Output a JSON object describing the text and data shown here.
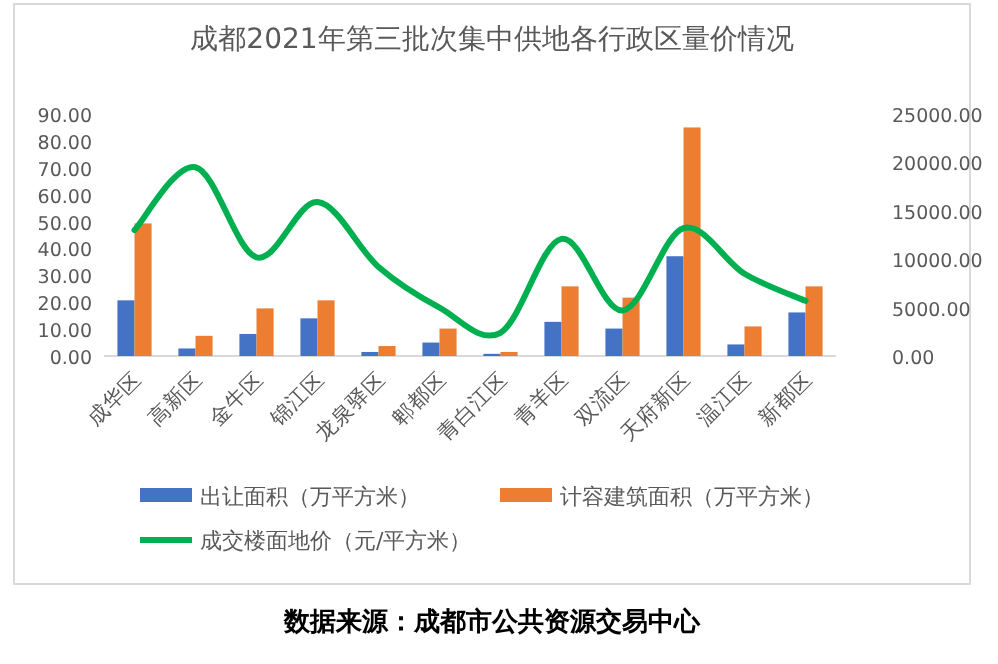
{
  "chart_data": {
    "type": "bar",
    "title": "成都2021年第三批次集中供地各行政区量价情况",
    "categories": [
      "成华区",
      "高新区",
      "金牛区",
      "锦江区",
      "龙泉驿区",
      "郫都区",
      "青白江区",
      "青羊区",
      "双流区",
      "天府新区",
      "温江区",
      "新都区"
    ],
    "series": [
      {
        "name": "出让面积（万平方米）",
        "color": "#4472c4",
        "values": [
          20.7,
          2.8,
          8.2,
          14,
          1.5,
          5,
          0.8,
          12.7,
          10.2,
          37.1,
          4.3,
          16.2
        ]
      },
      {
        "name": "计容建筑面积（万平方米）",
        "color": "#ed7d31",
        "values": [
          49.3,
          7.5,
          17.7,
          20.7,
          3.7,
          10.2,
          1.5,
          25.9,
          21.7,
          85,
          11,
          25.9
        ]
      },
      {
        "name": "成交楼面地价（元/平方米）",
        "type": "line",
        "axis": "y2",
        "color": "#00b050",
        "values": [
          13000,
          19500,
          10200,
          15900,
          9200,
          5000,
          2400,
          12100,
          4700,
          13200,
          8500,
          5700
        ]
      }
    ],
    "ylim": [
      0,
      90
    ],
    "yticks": [
      {
        "value": 0,
        "label": "0.00"
      },
      {
        "value": 10,
        "label": "10.00"
      },
      {
        "value": 20,
        "label": "20.00"
      },
      {
        "value": 30,
        "label": "30.00"
      },
      {
        "value": 40,
        "label": "40.00"
      },
      {
        "value": 50,
        "label": "50.00"
      },
      {
        "value": 60,
        "label": "60.00"
      },
      {
        "value": 70,
        "label": "70.00"
      },
      {
        "value": 80,
        "label": "80.00"
      },
      {
        "value": 90,
        "label": "90.00"
      }
    ],
    "y2lim": [
      0,
      25000
    ],
    "y2ticks": [
      {
        "value": 0,
        "label": "0.00"
      },
      {
        "value": 5000,
        "label": "5000.00"
      },
      {
        "value": 10000,
        "label": "10000.00"
      },
      {
        "value": 15000,
        "label": "15000.00"
      },
      {
        "value": 20000,
        "label": "20000.00"
      },
      {
        "value": 25000,
        "label": "25000.00"
      }
    ],
    "legend": "bottom",
    "grid": false,
    "annotations": [
      "数据来源：成都市公共资源交易中心"
    ]
  }
}
